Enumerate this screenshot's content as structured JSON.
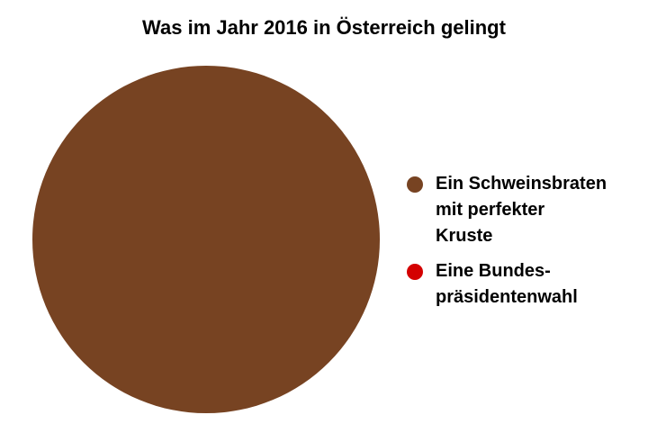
{
  "chart_data": {
    "type": "pie",
    "title": "Was im Jahr 2016 in Österreich gelingt",
    "categories": [
      "Ein Schweinsbraten\nmit perfekter\nKruste",
      "Eine Bundes-\npräsidentenwahl"
    ],
    "values": [
      100,
      0
    ],
    "colors": [
      "#774322",
      "#d40000"
    ],
    "legend_position": "right"
  }
}
